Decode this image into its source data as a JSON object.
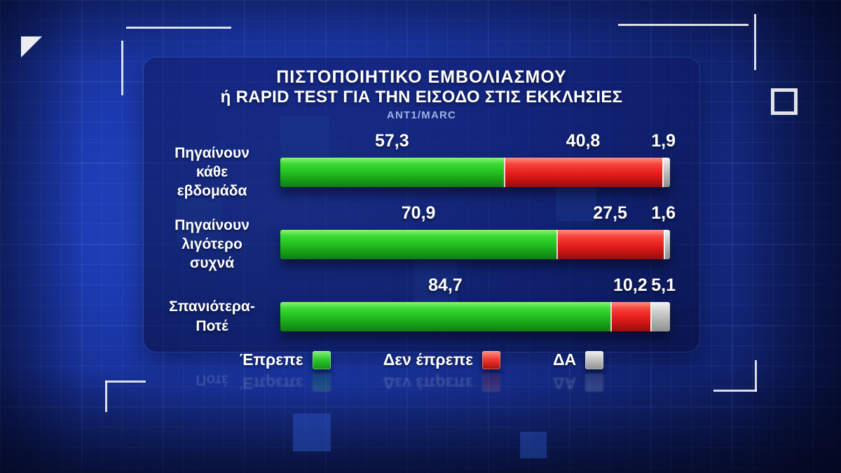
{
  "panel": {
    "title_line1": "ΠΙΣΤΟΠΟΙΗΤΙΚΟ ΕΜΒΟΛΙΑΣΜΟΥ",
    "title_line2": "ή RAPID TEST ΓΙΑ ΤΗΝ ΕΙΣΟΔΟ ΣΤΙΣ ΕΚΚΛΗΣΙΕΣ",
    "source": "ANT1/MARC"
  },
  "labels_display": [
    "Πηγαίνουν\nκάθε\nεβδομάδα",
    "Πηγαίνουν\nλιγότερο\nσυχνά",
    "Σπανιότερα-\nΠοτέ"
  ],
  "chart_data": {
    "type": "bar",
    "orientation": "horizontal",
    "stacked": true,
    "title": "ΠΙΣΤΟΠΟΙΗΤΙΚΟ ΕΜΒΟΛΙΑΣΜΟΥ ή RAPID TEST ΓΙΑ ΤΗΝ ΕΙΣΟΔΟ ΣΤΙΣ ΕΚΚΛΗΣΙΕΣ",
    "subtitle": "ANT1/MARC",
    "categories": [
      "Πηγαίνουν κάθε εβδομάδα",
      "Πηγαίνουν λιγότερο συχνά",
      "Σπανιότερα-Ποτέ"
    ],
    "series": [
      {
        "name": "Έπρεπε",
        "color": "#23c021",
        "values": [
          57.3,
          70.9,
          84.7
        ]
      },
      {
        "name": "Δεν έπρεπε",
        "color": "#e8211e",
        "values": [
          40.8,
          27.5,
          10.2
        ]
      },
      {
        "name": "ΔΑ",
        "color": "#b9b9b9",
        "values": [
          1.9,
          1.6,
          5.1
        ]
      }
    ],
    "value_labels": [
      [
        "57,3",
        "40,8",
        "1,9"
      ],
      [
        "70,9",
        "27,5",
        "1,6"
      ],
      [
        "84,7",
        "10,2",
        "5,1"
      ]
    ],
    "xlim": [
      0,
      100
    ],
    "grid": false,
    "legend_position": "bottom"
  },
  "legend": {
    "items": [
      {
        "label": "Έπρεπε",
        "color": "#23c021"
      },
      {
        "label": "Δεν έπρεπε",
        "color": "#e8211e"
      },
      {
        "label": "ΔΑ",
        "color": "#b9b9b9"
      }
    ]
  },
  "colors": {
    "background_center": "#2a50d0",
    "background_edge": "#050b33",
    "panel": "#0d165c",
    "accent_squares": "#2f5ed6",
    "text": "#ffffff",
    "source_text": "#9db2e2"
  }
}
